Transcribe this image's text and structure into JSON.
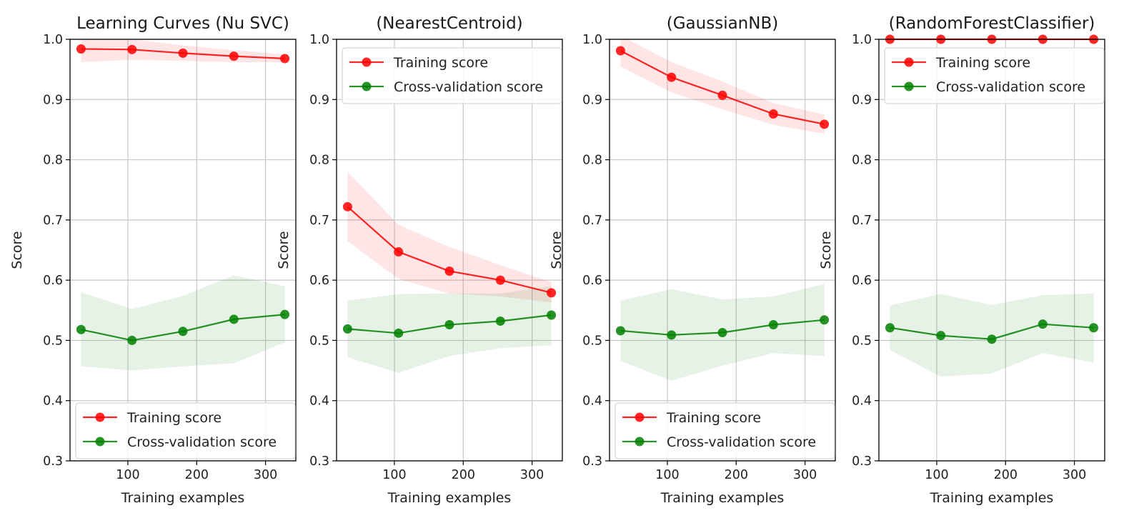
{
  "colors": {
    "training": "#ff0000",
    "cross_validation": "#008000"
  },
  "chart_data": [
    {
      "type": "line",
      "title": "Learning Curves (Nu SVC)",
      "xlabel": "Training examples",
      "ylabel": "Score",
      "ylim": [
        0.3,
        1.0
      ],
      "xticks": [
        100,
        200,
        300
      ],
      "yticks": [
        0.3,
        0.4,
        0.5,
        0.6,
        0.7,
        0.8,
        0.9,
        1.0
      ],
      "grid": true,
      "legend": "lower-right",
      "x": [
        32,
        106,
        180,
        254,
        328
      ],
      "series": [
        {
          "name": "Training score",
          "color_key": "training",
          "values": [
            0.984,
            0.983,
            0.977,
            0.972,
            0.968
          ],
          "band_low": [
            0.962,
            0.966,
            0.964,
            0.962,
            0.962
          ],
          "band_high": [
            1.004,
            1.0,
            0.99,
            0.982,
            0.975
          ]
        },
        {
          "name": "Cross-validation score",
          "color_key": "cross_validation",
          "values": [
            0.518,
            0.5,
            0.515,
            0.535,
            0.543
          ],
          "band_low": [
            0.457,
            0.45,
            0.457,
            0.462,
            0.497
          ],
          "band_high": [
            0.58,
            0.552,
            0.574,
            0.608,
            0.59
          ]
        }
      ]
    },
    {
      "type": "line",
      "title": "(NearestCentroid)",
      "xlabel": "Training examples",
      "ylabel": "Score",
      "ylim": [
        0.3,
        1.0
      ],
      "xticks": [
        100,
        200,
        300
      ],
      "yticks": [
        0.3,
        0.4,
        0.5,
        0.6,
        0.7,
        0.8,
        0.9,
        1.0
      ],
      "grid": true,
      "legend": "upper-left",
      "x": [
        32,
        106,
        180,
        254,
        328
      ],
      "series": [
        {
          "name": "Training score",
          "color_key": "training",
          "values": [
            0.722,
            0.647,
            0.615,
            0.6,
            0.579
          ],
          "band_low": [
            0.665,
            0.602,
            0.578,
            0.573,
            0.563
          ],
          "band_high": [
            0.78,
            0.692,
            0.655,
            0.625,
            0.597
          ]
        },
        {
          "name": "Cross-validation score",
          "color_key": "cross_validation",
          "values": [
            0.519,
            0.512,
            0.526,
            0.532,
            0.542
          ],
          "band_low": [
            0.472,
            0.446,
            0.474,
            0.487,
            0.492
          ],
          "band_high": [
            0.566,
            0.577,
            0.578,
            0.578,
            0.59
          ]
        }
      ]
    },
    {
      "type": "line",
      "title": "(GaussianNB)",
      "xlabel": "Training examples",
      "ylabel": "Score",
      "ylim": [
        0.3,
        1.0
      ],
      "xticks": [
        100,
        200,
        300
      ],
      "yticks": [
        0.3,
        0.4,
        0.5,
        0.6,
        0.7,
        0.8,
        0.9,
        1.0
      ],
      "grid": true,
      "legend": "lower-right",
      "x": [
        32,
        106,
        180,
        254,
        328
      ],
      "series": [
        {
          "name": "Training score",
          "color_key": "training",
          "values": [
            0.981,
            0.937,
            0.907,
            0.876,
            0.859
          ],
          "band_low": [
            0.955,
            0.912,
            0.884,
            0.858,
            0.843
          ],
          "band_high": [
            1.006,
            0.962,
            0.93,
            0.894,
            0.875
          ]
        },
        {
          "name": "Cross-validation score",
          "color_key": "cross_validation",
          "values": [
            0.516,
            0.509,
            0.513,
            0.526,
            0.534
          ],
          "band_low": [
            0.466,
            0.433,
            0.458,
            0.479,
            0.474
          ],
          "band_high": [
            0.566,
            0.585,
            0.568,
            0.573,
            0.594
          ]
        }
      ]
    },
    {
      "type": "line",
      "title": "(RandomForestClassifier)",
      "xlabel": "Training examples",
      "ylabel": "Score",
      "ylim": [
        0.3,
        1.0
      ],
      "xticks": [
        100,
        200,
        300
      ],
      "yticks": [
        0.3,
        0.4,
        0.5,
        0.6,
        0.7,
        0.8,
        0.9,
        1.0
      ],
      "grid": true,
      "legend": "upper-left",
      "x": [
        32,
        106,
        180,
        254,
        328
      ],
      "series": [
        {
          "name": "Training score",
          "color_key": "training",
          "values": [
            1.0,
            1.0,
            1.0,
            1.0,
            1.0
          ],
          "band_low": [
            1.0,
            1.0,
            1.0,
            1.0,
            1.0
          ],
          "band_high": [
            1.0,
            1.0,
            1.0,
            1.0,
            1.0
          ]
        },
        {
          "name": "Cross-validation score",
          "color_key": "cross_validation",
          "values": [
            0.521,
            0.508,
            0.502,
            0.527,
            0.521
          ],
          "band_low": [
            0.484,
            0.44,
            0.445,
            0.479,
            0.463
          ],
          "band_high": [
            0.558,
            0.577,
            0.559,
            0.575,
            0.578
          ]
        }
      ]
    }
  ]
}
